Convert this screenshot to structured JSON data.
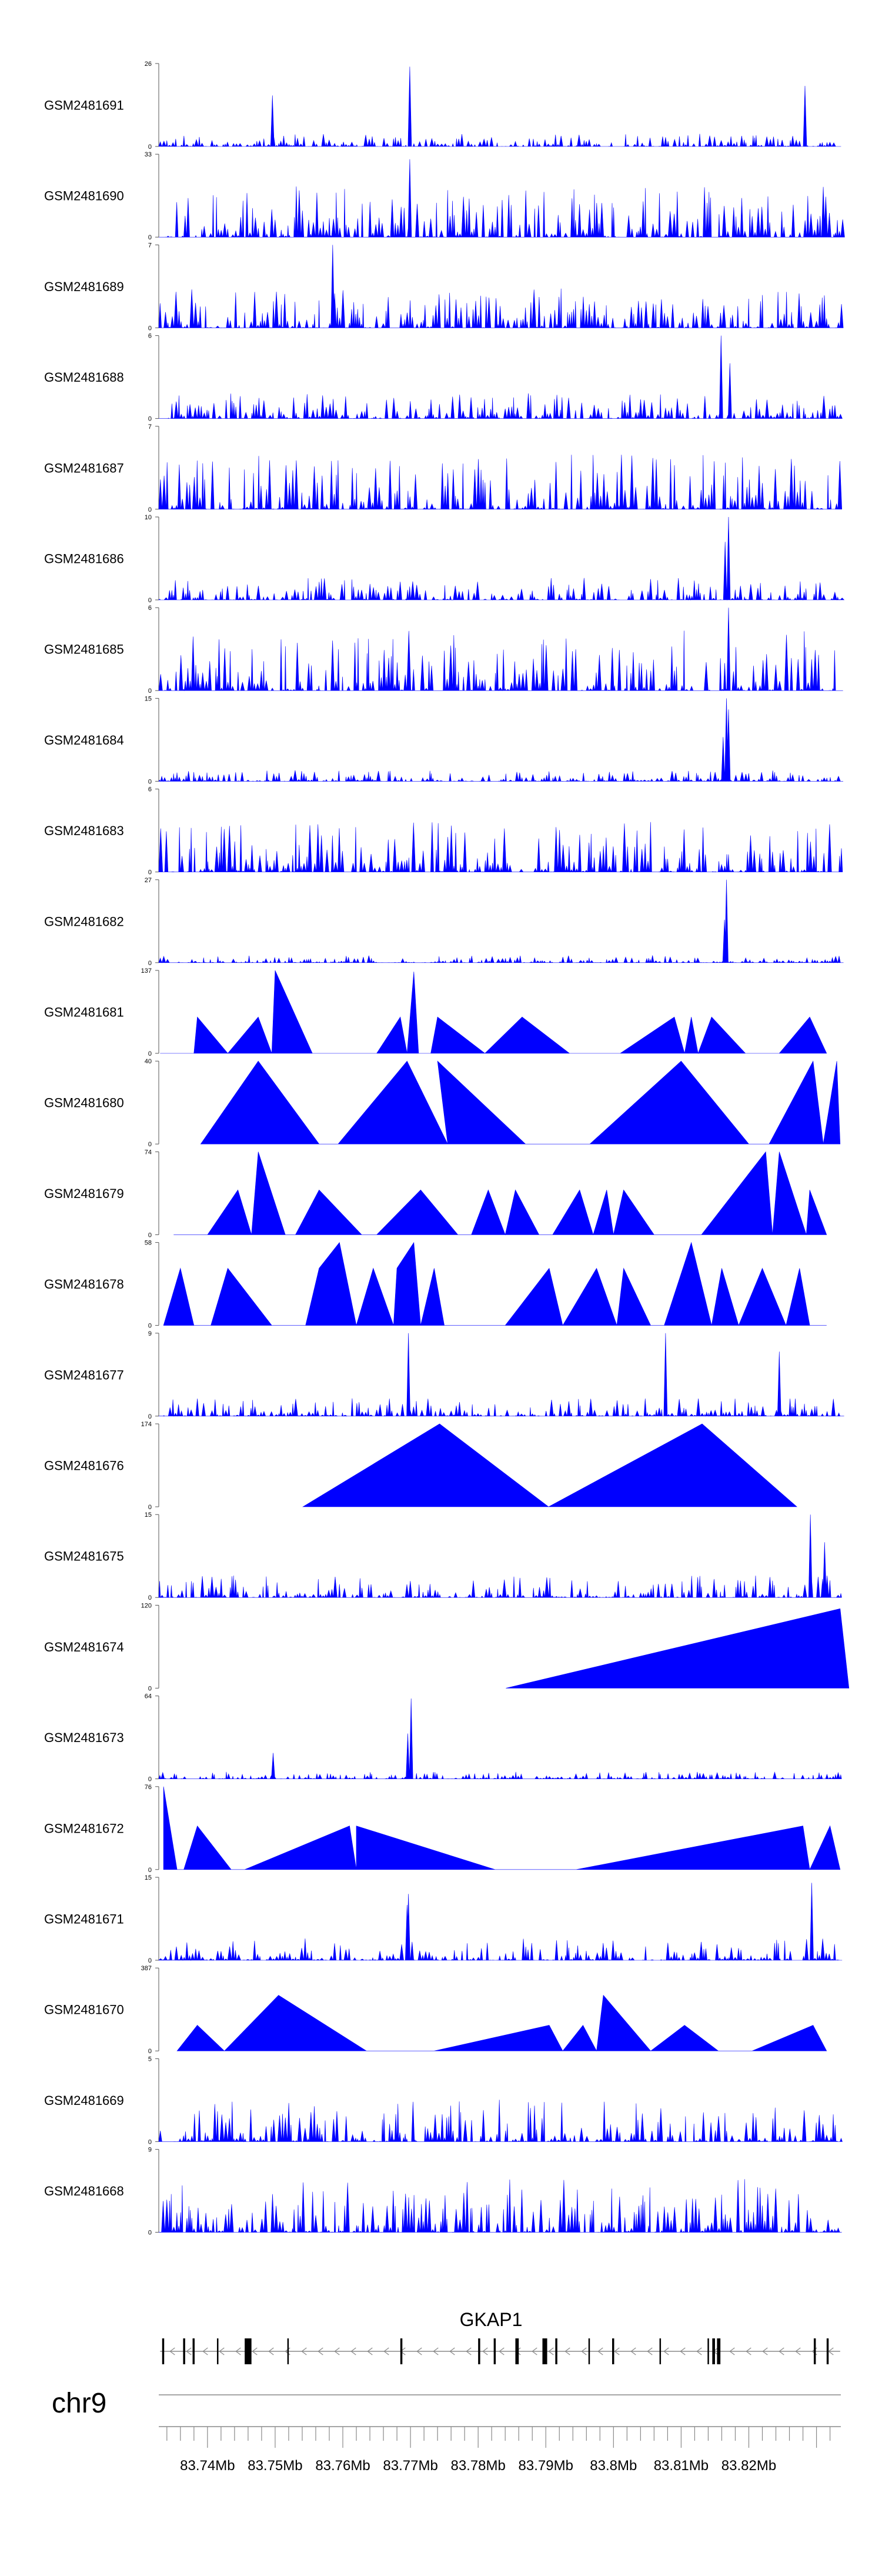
{
  "chart_data": {
    "type": "area",
    "fill_color": "#0000ff",
    "x_range_mb": [
      83.732,
      83.8325
    ],
    "tracks": [
      {
        "sample": "GSM2481691",
        "ymax": "26",
        "ymax_value": 26,
        "peaks": [
          {
            "x": 83.7496,
            "v": 16
          },
          {
            "x": 83.7699,
            "v": 25
          },
          {
            "x": 83.8283,
            "v": 19
          }
        ],
        "baseline": 0.07
      },
      {
        "sample": "GSM2481690",
        "ymax": "33",
        "ymax_value": 33,
        "peaks": [
          {
            "x": 83.7699,
            "v": 31
          },
          {
            "x": 83.7673,
            "v": 15
          },
          {
            "x": 83.831,
            "v": 20
          }
        ],
        "baseline": 0.28
      },
      {
        "sample": "GSM2481689",
        "ymax": "7",
        "ymax_value": 7,
        "peaks": [
          {
            "x": 83.7585,
            "v": 7
          }
        ],
        "baseline": 0.22
      },
      {
        "sample": "GSM2481688",
        "ymax": "6",
        "ymax_value": 6,
        "peaks": [
          {
            "x": 83.8159,
            "v": 6
          },
          {
            "x": 83.8172,
            "v": 4
          }
        ],
        "baseline": 0.14
      },
      {
        "sample": "GSM2481687",
        "ymax": "7",
        "ymax_value": 7,
        "peaks": [],
        "baseline": 0.3
      },
      {
        "sample": "GSM2481686",
        "ymax": "10",
        "ymax_value": 10,
        "peaks": [
          {
            "x": 83.817,
            "v": 10
          },
          {
            "x": 83.8165,
            "v": 7
          }
        ],
        "baseline": 0.12
      },
      {
        "sample": "GSM2481685",
        "ymax": "6",
        "ymax_value": 6,
        "peaks": [
          {
            "x": 83.817,
            "v": 6
          }
        ],
        "baseline": 0.33
      },
      {
        "sample": "GSM2481684",
        "ymax": "15",
        "ymax_value": 15,
        "peaks": [
          {
            "x": 83.8167,
            "v": 15
          },
          {
            "x": 83.817,
            "v": 13
          },
          {
            "x": 83.8162,
            "v": 8
          }
        ],
        "baseline": 0.06
      },
      {
        "sample": "GSM2481683",
        "ymax": "6",
        "ymax_value": 6,
        "peaks": [],
        "baseline": 0.28
      },
      {
        "sample": "GSM2481682",
        "ymax": "27",
        "ymax_value": 27,
        "peaks": [
          {
            "x": 83.8167,
            "v": 27
          },
          {
            "x": 83.8164,
            "v": 14
          }
        ],
        "baseline": 0.04
      },
      {
        "sample": "GSM2481681",
        "ymax": "137",
        "ymax_value": 137,
        "points": [
          [
            83.733,
            0
          ],
          [
            83.738,
            0
          ],
          [
            83.7385,
            60
          ],
          [
            83.743,
            0
          ],
          [
            83.7475,
            60
          ],
          [
            83.7495,
            0
          ],
          [
            83.75,
            137
          ],
          [
            83.7555,
            0
          ],
          [
            83.765,
            0
          ],
          [
            83.7685,
            60
          ],
          [
            83.7695,
            0
          ],
          [
            83.7705,
            135
          ],
          [
            83.7712,
            0
          ],
          [
            83.773,
            0
          ],
          [
            83.774,
            60
          ],
          [
            83.781,
            0
          ],
          [
            83.7865,
            60
          ],
          [
            83.7935,
            0
          ],
          [
            83.801,
            0
          ],
          [
            83.809,
            60
          ],
          [
            83.8105,
            0
          ],
          [
            83.8115,
            60
          ],
          [
            83.8125,
            0
          ],
          [
            83.8145,
            60
          ],
          [
            83.8195,
            0
          ],
          [
            83.8245,
            0
          ],
          [
            83.829,
            60
          ],
          [
            83.8315,
            0
          ]
        ]
      },
      {
        "sample": "GSM2481680",
        "ymax": "40",
        "ymax_value": 40,
        "points": [
          [
            83.739,
            0
          ],
          [
            83.7475,
            40
          ],
          [
            83.7565,
            0
          ],
          [
            83.7593,
            0
          ],
          [
            83.7695,
            40
          ],
          [
            83.7755,
            0
          ],
          [
            83.774,
            40
          ],
          [
            83.787,
            0
          ],
          [
            83.7965,
            0
          ],
          [
            83.81,
            40
          ],
          [
            83.82,
            0
          ],
          [
            83.823,
            0
          ],
          [
            83.8295,
            40
          ],
          [
            83.831,
            0
          ],
          [
            83.833,
            40
          ],
          [
            83.8335,
            0
          ]
        ]
      },
      {
        "sample": "GSM2481679",
        "ymax": "74",
        "ymax_value": 74,
        "points": [
          [
            83.735,
            0
          ],
          [
            83.74,
            0
          ],
          [
            83.7445,
            40
          ],
          [
            83.7465,
            0
          ],
          [
            83.7475,
            74
          ],
          [
            83.7515,
            0
          ],
          [
            83.753,
            0
          ],
          [
            83.7565,
            40
          ],
          [
            83.7628,
            0
          ],
          [
            83.765,
            0
          ],
          [
            83.7715,
            40
          ],
          [
            83.777,
            0
          ],
          [
            83.779,
            0
          ],
          [
            83.7815,
            40
          ],
          [
            83.784,
            0
          ],
          [
            83.7855,
            40
          ],
          [
            83.789,
            0
          ],
          [
            83.791,
            0
          ],
          [
            83.795,
            40
          ],
          [
            83.797,
            0
          ],
          [
            83.799,
            40
          ],
          [
            83.8,
            0
          ],
          [
            83.8015,
            40
          ],
          [
            83.806,
            0
          ],
          [
            83.813,
            0
          ],
          [
            83.8225,
            74
          ],
          [
            83.8235,
            0
          ],
          [
            83.8245,
            74
          ],
          [
            83.8285,
            0
          ],
          [
            83.829,
            40
          ],
          [
            83.8315,
            0
          ]
        ]
      },
      {
        "sample": "GSM2481678",
        "ymax": "58",
        "ymax_value": 58,
        "points": [
          [
            83.7335,
            0
          ],
          [
            83.736,
            40
          ],
          [
            83.738,
            0
          ],
          [
            83.7405,
            0
          ],
          [
            83.743,
            40
          ],
          [
            83.7495,
            0
          ],
          [
            83.7545,
            0
          ],
          [
            83.7565,
            40
          ],
          [
            83.7595,
            58
          ],
          [
            83.762,
            0
          ],
          [
            83.7645,
            40
          ],
          [
            83.7675,
            0
          ],
          [
            83.768,
            40
          ],
          [
            83.7705,
            58
          ],
          [
            83.7715,
            0
          ],
          [
            83.7735,
            40
          ],
          [
            83.775,
            0
          ],
          [
            83.784,
            0
          ],
          [
            83.7905,
            40
          ],
          [
            83.7925,
            0
          ],
          [
            83.7975,
            40
          ],
          [
            83.8005,
            0
          ],
          [
            83.8015,
            40
          ],
          [
            83.8055,
            0
          ],
          [
            83.8075,
            0
          ],
          [
            83.8115,
            58
          ],
          [
            83.8145,
            0
          ],
          [
            83.816,
            40
          ],
          [
            83.8185,
            0
          ],
          [
            83.822,
            40
          ],
          [
            83.8255,
            0
          ],
          [
            83.8275,
            40
          ],
          [
            83.829,
            0
          ],
          [
            83.8315,
            0
          ]
        ]
      },
      {
        "sample": "GSM2481677",
        "ymax": "9",
        "ymax_value": 9,
        "peaks": [
          {
            "x": 83.7697,
            "v": 9
          },
          {
            "x": 83.8077,
            "v": 9
          },
          {
            "x": 83.8245,
            "v": 7
          }
        ],
        "baseline": 0.1
      },
      {
        "sample": "GSM2481676",
        "ymax": "174",
        "ymax_value": 174,
        "points": [
          [
            83.7541,
            0
          ],
          [
            83.7743,
            174
          ],
          [
            83.7904,
            0
          ],
          [
            83.8131,
            174
          ],
          [
            83.8271,
            0
          ]
        ]
      },
      {
        "sample": "GSM2481675",
        "ymax": "15",
        "ymax_value": 15,
        "peaks": [
          {
            "x": 83.8291,
            "v": 15
          },
          {
            "x": 83.8312,
            "v": 10
          }
        ],
        "baseline": 0.12
      },
      {
        "sample": "GSM2481674",
        "ymax": "120",
        "ymax_value": 120,
        "points": [
          [
            83.7841,
            0
          ],
          [
            83.8335,
            115
          ],
          [
            83.8348,
            0
          ]
        ]
      },
      {
        "sample": "GSM2481673",
        "ymax": "64",
        "ymax_value": 64,
        "peaks": [
          {
            "x": 83.7701,
            "v": 62
          },
          {
            "x": 83.7696,
            "v": 35
          },
          {
            "x": 83.7497,
            "v": 20
          }
        ],
        "baseline": 0.04
      },
      {
        "sample": "GSM2481672",
        "ymax": "76",
        "ymax_value": 76,
        "points": [
          [
            83.7335,
            76
          ],
          [
            83.7355,
            0
          ],
          [
            83.7365,
            0
          ],
          [
            83.7385,
            40
          ],
          [
            83.7435,
            0
          ],
          [
            83.7455,
            0
          ],
          [
            83.761,
            40
          ],
          [
            83.762,
            0
          ],
          [
            83.762,
            40
          ],
          [
            83.7825,
            0
          ],
          [
            83.7945,
            0
          ],
          [
            83.828,
            40
          ],
          [
            83.829,
            0
          ],
          [
            83.832,
            40
          ],
          [
            83.8335,
            0
          ]
        ]
      },
      {
        "sample": "GSM2481671",
        "ymax": "15",
        "ymax_value": 15,
        "peaks": [
          {
            "x": 83.7697,
            "v": 12
          },
          {
            "x": 83.7695,
            "v": 10
          },
          {
            "x": 83.8293,
            "v": 14
          }
        ],
        "baseline": 0.12
      },
      {
        "sample": "GSM2481670",
        "ymax": "387",
        "ymax_value": 387,
        "points": [
          [
            83.7355,
            0
          ],
          [
            83.7385,
            120
          ],
          [
            83.7425,
            0
          ],
          [
            83.7505,
            260
          ],
          [
            83.7635,
            0
          ],
          [
            83.7735,
            0
          ],
          [
            83.7905,
            120
          ],
          [
            83.7925,
            0
          ],
          [
            83.7955,
            120
          ],
          [
            83.7975,
            0
          ],
          [
            83.7985,
            260
          ],
          [
            83.8055,
            0
          ],
          [
            83.8105,
            120
          ],
          [
            83.8155,
            0
          ],
          [
            83.8205,
            0
          ],
          [
            83.8295,
            120
          ],
          [
            83.8315,
            0
          ]
        ]
      },
      {
        "sample": "GSM2481669",
        "ymax": "5",
        "ymax_value": 5,
        "peaks": [],
        "baseline": 0.23
      },
      {
        "sample": "GSM2481668",
        "ymax": "9",
        "ymax_value": 9,
        "peaks": [],
        "baseline": 0.3
      }
    ],
    "gene": {
      "name": "GKAP1",
      "strand": "-",
      "start_mb": 83.733,
      "end_mb": 83.8335,
      "exons_mb": [
        [
          83.7333,
          83.7336
        ],
        [
          83.7364,
          83.7367
        ],
        [
          83.7378,
          83.7381
        ],
        [
          83.7414,
          83.7416
        ],
        [
          83.7455,
          83.7465
        ],
        [
          83.7518,
          83.752
        ],
        [
          83.7685,
          83.7688
        ],
        [
          83.78,
          83.7803
        ],
        [
          83.7823,
          83.7826
        ],
        [
          83.7855,
          83.786
        ],
        [
          83.7895,
          83.7902
        ],
        [
          83.7914,
          83.7917
        ],
        [
          83.7963,
          83.7965
        ],
        [
          83.7998,
          83.8001
        ],
        [
          83.8068,
          83.807
        ],
        [
          83.8139,
          83.8141
        ],
        [
          83.8146,
          83.815
        ],
        [
          83.8153,
          83.8158
        ],
        [
          83.8296,
          83.8299
        ],
        [
          83.8315,
          83.8318
        ]
      ]
    },
    "chromosome": "chr9",
    "x_tick_labels": [
      "83.74Mb",
      "83.75Mb",
      "83.76Mb",
      "83.77Mb",
      "83.78Mb",
      "83.79Mb",
      "83.8Mb",
      "83.81Mb",
      "83.82Mb"
    ],
    "y_min_label": "0"
  }
}
